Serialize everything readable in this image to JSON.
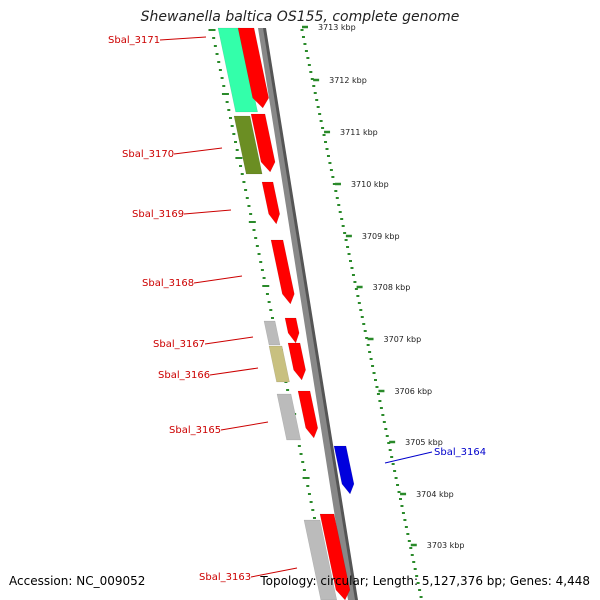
{
  "header": {
    "title": "Shewanella baltica OS155, complete genome"
  },
  "footer": {
    "accession": "Accession: NC_009052",
    "summary": "Topology: circular; Length: 5,127,376 bp; Genes: 4,448"
  },
  "colors": {
    "forward_gene": "#ff0000",
    "reverse_gene": "#0000dd",
    "label_forward": "#cc0000",
    "label_reverse": "#0000cc",
    "tick": "#2a8a2a",
    "track_cyan": "#33ffaa",
    "track_olive": "#6b8e23",
    "track_grey": "#bbbbbb",
    "track_khaki": "#c8c080",
    "backbone": "#888888"
  },
  "scale_labels": [
    "3713 kbp",
    "3712 kbp",
    "3711 kbp",
    "3710 kbp",
    "3709 kbp",
    "3708 kbp",
    "3707 kbp",
    "3706 kbp",
    "3705 kbp",
    "3704 kbp",
    "3703 kbp"
  ],
  "gene_labels": [
    {
      "name": "Sbal_3171",
      "strand": "forward"
    },
    {
      "name": "Sbal_3170",
      "strand": "forward"
    },
    {
      "name": "Sbal_3169",
      "strand": "forward"
    },
    {
      "name": "Sbal_3168",
      "strand": "forward"
    },
    {
      "name": "Sbal_3167",
      "strand": "forward"
    },
    {
      "name": "Sbal_3166",
      "strand": "forward"
    },
    {
      "name": "Sbal_3165",
      "strand": "forward"
    },
    {
      "name": "Sbal_3164",
      "strand": "reverse"
    },
    {
      "name": "Sbal_3163",
      "strand": "forward"
    }
  ]
}
